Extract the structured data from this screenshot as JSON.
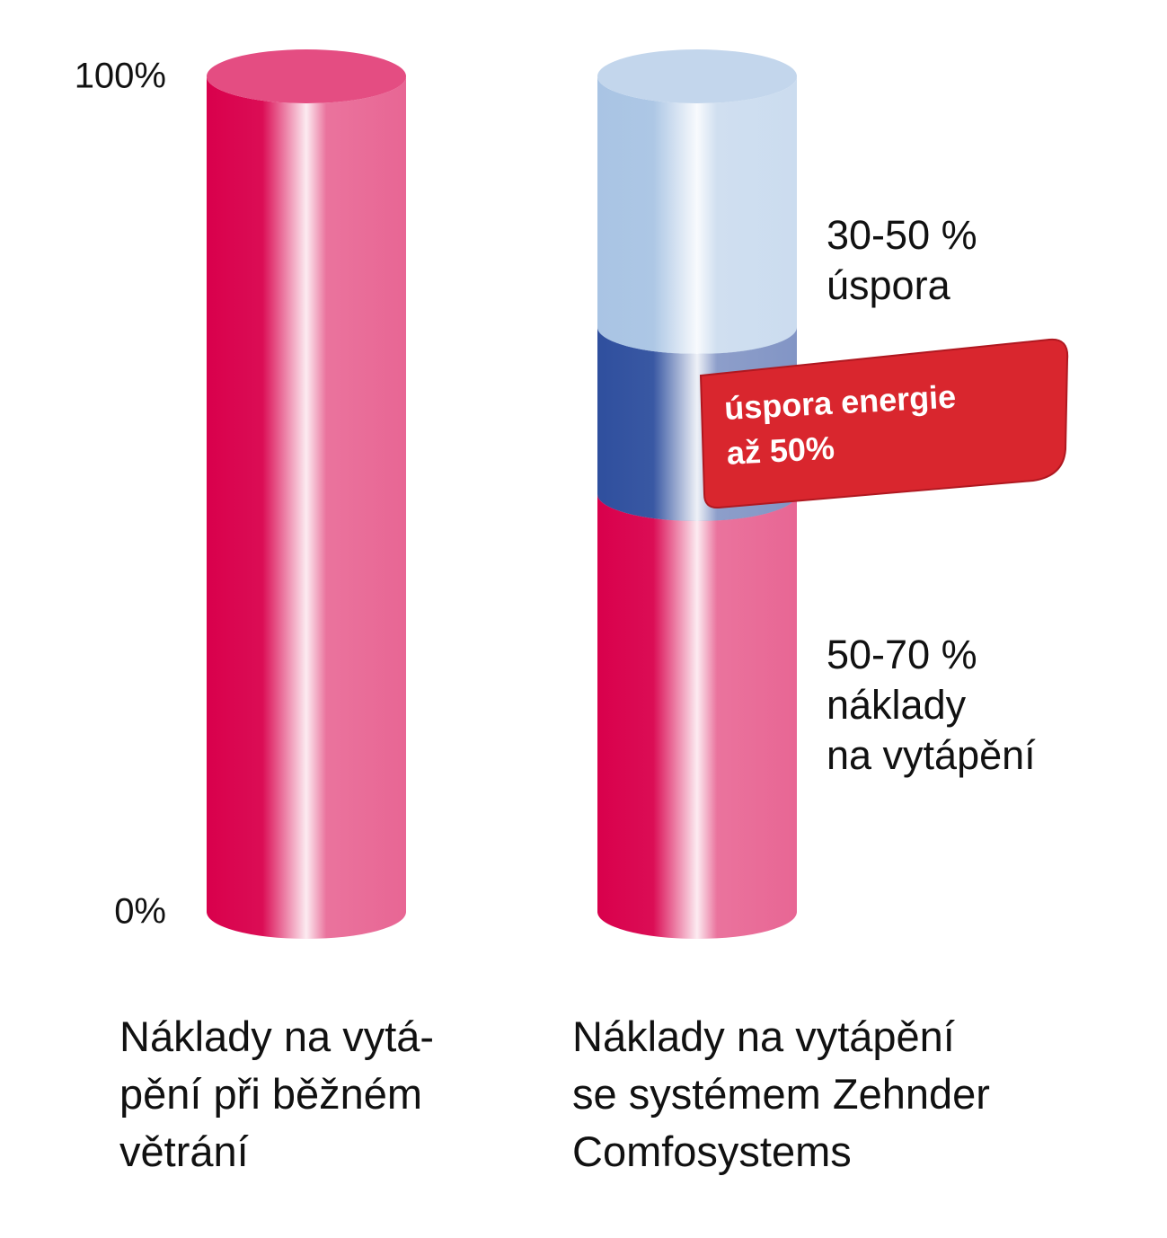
{
  "chart_data": {
    "type": "bar",
    "categories": [
      "Náklady na vytá-\npění při běžném\nvětrání",
      "Náklady na vytápění\nse systémem Zehnder\nComfosystems"
    ],
    "series": [
      {
        "name": "50-70 %\nnáklady\nna vytápění",
        "color": "#d9004c",
        "values": [
          100,
          50
        ]
      },
      {
        "color": "#2f4f9e",
        "values": [
          null,
          20
        ]
      },
      {
        "name": "30-50 %\núspora",
        "color": "#a9c4e4",
        "values": [
          null,
          30
        ]
      }
    ],
    "annotation": "úspora energie\naž 50%",
    "ylim": [
      0,
      100
    ],
    "yticks": [
      {
        "value": 0,
        "label": "0%"
      },
      {
        "value": 100,
        "label": "100%"
      }
    ],
    "stacked": true
  }
}
